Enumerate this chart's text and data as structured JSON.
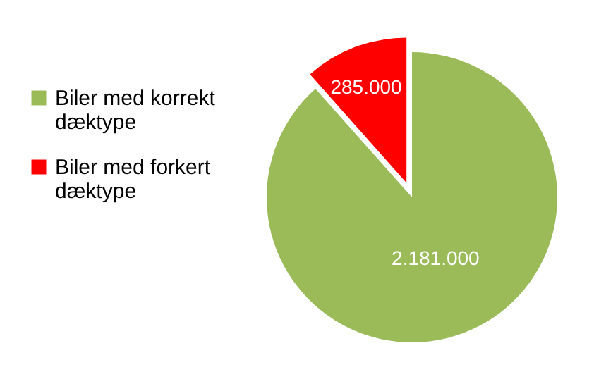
{
  "chart_data": {
    "type": "pie",
    "categories": [
      "Biler med korrekt dæktype",
      "Biler med forkert dæktype"
    ],
    "values": [
      2181000,
      285000
    ],
    "colors": [
      "#9bbb59",
      "#ff0000"
    ],
    "value_labels": [
      "2.181.000",
      "285.000"
    ],
    "legend": "left"
  }
}
